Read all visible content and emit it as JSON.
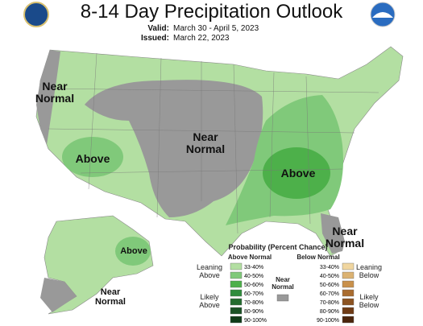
{
  "header": {
    "title": "8-14 Day Precipitation Outlook",
    "valid_label": "Valid:",
    "valid": "March 30 - April 5, 2023",
    "issued_label": "Issued:",
    "issued": "March 22, 2023"
  },
  "map_labels": [
    "Near Normal",
    "Above",
    "Near Normal",
    "Above",
    "Near Normal",
    "Above",
    "Near Normal"
  ],
  "legend": {
    "title": "Probability (Percent Chance)",
    "above_heading": "Above Normal",
    "below_heading": "Below Normal",
    "leaning_above": "Leaning Above",
    "likely_above": "Likely Above",
    "near_normal": "Near Normal",
    "leaning_below": "Leaning Below",
    "likely_below": "Likely Below",
    "near_color": "#999999",
    "above": [
      {
        "label": "33-40%",
        "color": "#b3dfa2"
      },
      {
        "label": "40-50%",
        "color": "#80c97a"
      },
      {
        "label": "50-60%",
        "color": "#4db04a"
      },
      {
        "label": "60-70%",
        "color": "#2f8c3c"
      },
      {
        "label": "70-80%",
        "color": "#246c2f"
      },
      {
        "label": "80-90%",
        "color": "#1b5225"
      },
      {
        "label": "90-100%",
        "color": "#103b18"
      }
    ],
    "below": [
      {
        "label": "33-40%",
        "color": "#f0d6a0"
      },
      {
        "label": "40-50%",
        "color": "#dbb272"
      },
      {
        "label": "50-60%",
        "color": "#c9914b"
      },
      {
        "label": "60-70%",
        "color": "#a96c2f"
      },
      {
        "label": "70-80%",
        "color": "#8c5321"
      },
      {
        "label": "80-90%",
        "color": "#6f3b15"
      },
      {
        "label": "90-100%",
        "color": "#4b250c"
      }
    ]
  }
}
